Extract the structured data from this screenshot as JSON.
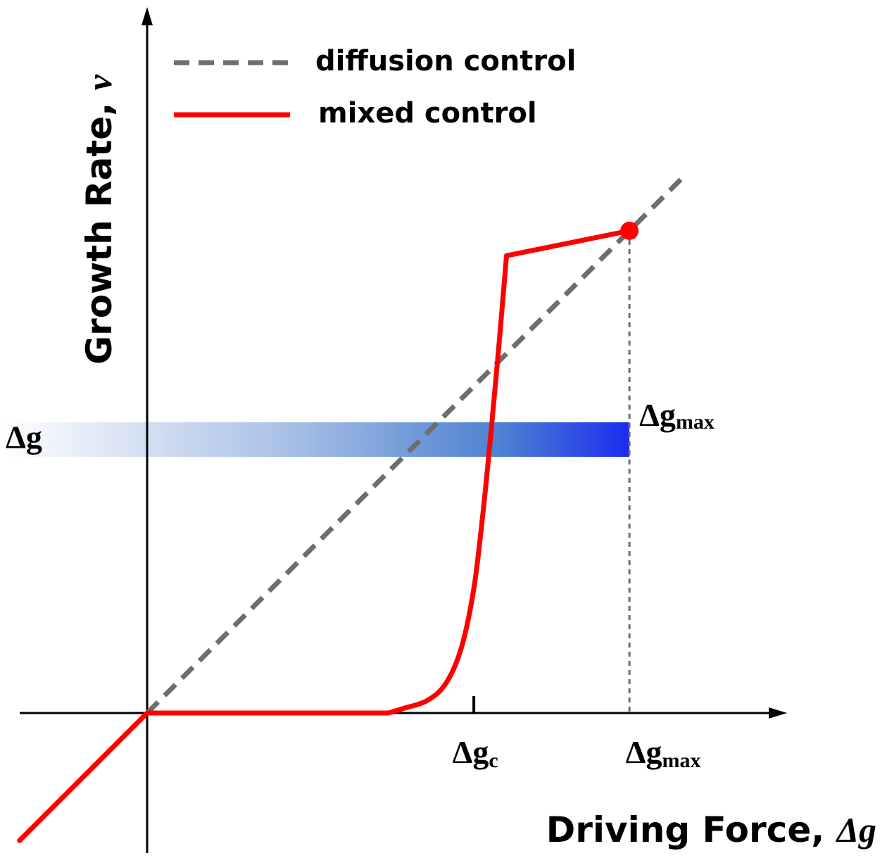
{
  "chart_data": {
    "type": "line",
    "xlabel": "Driving Force, ",
    "xlabel_symbol": "Δg",
    "ylabel": "Growth Rate, ",
    "ylabel_symbol": "v",
    "x_tick_labels": [
      {
        "main": "Δg",
        "sub": "c"
      },
      {
        "main": "Δg",
        "sub": "max"
      }
    ],
    "band": {
      "left_label": "Δg",
      "right_label_main": "Δg",
      "right_label_sub": "max",
      "gradient": [
        "#ffffff",
        "#1a2cf0"
      ]
    },
    "series": [
      {
        "name": "diffusion control",
        "style": "dashed",
        "color": "#6e6e6e",
        "points": [
          [
            0,
            0
          ],
          [
            3.45,
            3.45
          ]
        ]
      },
      {
        "name": "mixed control",
        "style": "solid",
        "color": "#ff0000",
        "points": [
          [
            -0.82,
            -0.82
          ],
          [
            0,
            0
          ],
          [
            1.55,
            0
          ],
          [
            1.65,
            0.03
          ],
          [
            1.8,
            0.08
          ],
          [
            1.92,
            0.19
          ],
          [
            2.02,
            0.42
          ],
          [
            2.1,
            0.8
          ],
          [
            2.16,
            1.3
          ],
          [
            2.21,
            1.8
          ],
          [
            2.26,
            2.35
          ],
          [
            2.31,
            2.94
          ],
          [
            3.1,
            3.1
          ]
        ]
      }
    ],
    "end_point": {
      "x": 3.1,
      "y": 3.1,
      "color": "#ff0000"
    },
    "delta_g_c": 2.1,
    "delta_g_max": 3.1,
    "grid": false,
    "legend_position": "top-left"
  }
}
